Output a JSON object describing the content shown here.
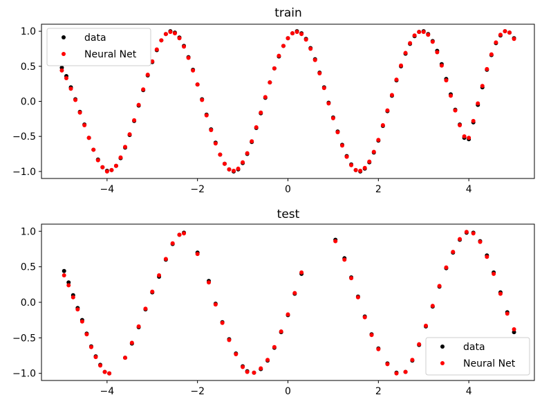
{
  "chart_data": [
    {
      "type": "scatter",
      "title": "train",
      "xlabel": "",
      "ylabel": "",
      "xlim": [
        -5.45,
        5.45
      ],
      "ylim": [
        -1.1,
        1.1
      ],
      "xticks": [
        -4,
        -2,
        0,
        2,
        4
      ],
      "yticks": [
        1.0,
        0.5,
        0.0,
        -0.5,
        -1.0
      ],
      "xtick_labels": [
        "−4",
        "−2",
        "0",
        "2",
        "4"
      ],
      "ytick_labels": [
        "1.0",
        "0.5",
        "0.0",
        "−0.5",
        "−1.0"
      ],
      "grid": false,
      "legend_position": "upper-left",
      "series": [
        {
          "name": "data",
          "color": "#000000",
          "x": [
            -5.0,
            -4.9,
            -4.8,
            -4.7,
            -4.6,
            -4.5,
            -4.4,
            -4.3,
            -4.2,
            -4.1,
            -4.0,
            -3.9,
            -3.8,
            -3.7,
            -3.6,
            -3.5,
            -3.4,
            -3.3,
            -3.2,
            -3.1,
            -3.0,
            -2.9,
            -2.8,
            -2.7,
            -2.6,
            -2.5,
            -2.4,
            -2.3,
            -2.2,
            -2.1,
            -2.0,
            -1.9,
            -1.8,
            -1.7,
            -1.6,
            -1.5,
            -1.4,
            -1.3,
            -1.2,
            -1.1,
            -1.0,
            -0.9,
            -0.8,
            -0.7,
            -0.6,
            -0.5,
            -0.4,
            -0.3,
            -0.2,
            -0.1,
            0.0,
            0.1,
            0.2,
            0.3,
            0.4,
            0.5,
            0.6,
            0.7,
            0.8,
            0.9,
            1.0,
            1.1,
            1.2,
            1.3,
            1.4,
            1.5,
            1.6,
            1.7,
            1.8,
            1.9,
            2.0,
            2.1,
            2.2,
            2.3,
            2.4,
            2.5,
            2.6,
            2.7,
            2.8,
            2.9,
            3.0,
            3.1,
            3.2,
            3.3,
            3.4,
            3.5,
            3.6,
            3.7,
            3.8,
            3.9,
            4.0,
            4.1,
            4.2,
            4.3,
            4.4,
            4.5,
            4.6,
            4.7,
            4.8,
            4.9,
            5.0
          ],
          "y": [
            0.48,
            0.36,
            0.2,
            0.03,
            -0.15,
            -0.33,
            -0.52,
            -0.69,
            -0.83,
            -0.94,
            -0.99,
            -0.98,
            -0.92,
            -0.81,
            -0.66,
            -0.48,
            -0.28,
            -0.06,
            0.16,
            0.37,
            0.56,
            0.73,
            0.87,
            0.96,
            1.0,
            0.98,
            0.91,
            0.79,
            0.63,
            0.45,
            0.24,
            0.03,
            -0.19,
            -0.4,
            -0.59,
            -0.76,
            -0.89,
            -0.97,
            -1.0,
            -0.97,
            -0.88,
            -0.75,
            -0.58,
            -0.38,
            -0.17,
            0.05,
            0.27,
            0.47,
            0.64,
            0.79,
            0.9,
            0.97,
            1.0,
            0.97,
            0.89,
            0.76,
            0.6,
            0.41,
            0.2,
            -0.02,
            -0.23,
            -0.43,
            -0.62,
            -0.78,
            -0.9,
            -0.98,
            -1.0,
            -0.96,
            -0.87,
            -0.73,
            -0.56,
            -0.35,
            -0.14,
            0.08,
            0.3,
            0.5,
            0.68,
            0.82,
            0.93,
            0.99,
            1.0,
            0.96,
            0.86,
            0.72,
            0.53,
            0.32,
            0.1,
            -0.12,
            -0.33,
            -0.52,
            -0.54,
            -0.3,
            -0.05,
            0.2,
            0.45,
            0.66,
            0.83,
            0.94,
            1.0,
            0.98,
            0.9
          ]
        },
        {
          "name": "Neural Net",
          "color": "#ff0000",
          "x": [
            -5.0,
            -4.9,
            -4.8,
            -4.7,
            -4.6,
            -4.5,
            -4.4,
            -4.3,
            -4.2,
            -4.1,
            -4.0,
            -3.9,
            -3.8,
            -3.7,
            -3.6,
            -3.5,
            -3.4,
            -3.3,
            -3.2,
            -3.1,
            -3.0,
            -2.9,
            -2.8,
            -2.7,
            -2.6,
            -2.5,
            -2.4,
            -2.3,
            -2.2,
            -2.1,
            -2.0,
            -1.9,
            -1.8,
            -1.7,
            -1.6,
            -1.5,
            -1.4,
            -1.3,
            -1.2,
            -1.1,
            -1.0,
            -0.9,
            -0.8,
            -0.7,
            -0.6,
            -0.5,
            -0.4,
            -0.3,
            -0.2,
            -0.1,
            0.0,
            0.1,
            0.2,
            0.3,
            0.4,
            0.5,
            0.6,
            0.7,
            0.8,
            0.9,
            1.0,
            1.1,
            1.2,
            1.3,
            1.4,
            1.5,
            1.6,
            1.7,
            1.8,
            1.9,
            2.0,
            2.1,
            2.2,
            2.3,
            2.4,
            2.5,
            2.6,
            2.7,
            2.8,
            2.9,
            3.0,
            3.1,
            3.2,
            3.3,
            3.4,
            3.5,
            3.6,
            3.7,
            3.8,
            3.9,
            4.0,
            4.1,
            4.2,
            4.3,
            4.4,
            4.5,
            4.6,
            4.7,
            4.8,
            4.9,
            5.0
          ],
          "y": [
            0.44,
            0.33,
            0.18,
            0.02,
            -0.16,
            -0.34,
            -0.52,
            -0.69,
            -0.84,
            -0.94,
            -1.0,
            -0.98,
            -0.92,
            -0.8,
            -0.65,
            -0.47,
            -0.27,
            -0.05,
            0.17,
            0.38,
            0.57,
            0.74,
            0.87,
            0.96,
            0.99,
            0.97,
            0.9,
            0.78,
            0.62,
            0.44,
            0.24,
            0.02,
            -0.2,
            -0.41,
            -0.6,
            -0.76,
            -0.89,
            -0.97,
            -0.99,
            -0.96,
            -0.87,
            -0.74,
            -0.57,
            -0.37,
            -0.16,
            0.06,
            0.27,
            0.47,
            0.65,
            0.79,
            0.9,
            0.97,
            0.99,
            0.96,
            0.88,
            0.75,
            0.59,
            0.4,
            0.19,
            -0.03,
            -0.24,
            -0.44,
            -0.63,
            -0.79,
            -0.91,
            -0.98,
            -0.99,
            -0.95,
            -0.86,
            -0.72,
            -0.55,
            -0.34,
            -0.13,
            0.09,
            0.31,
            0.51,
            0.69,
            0.83,
            0.94,
            0.99,
            0.99,
            0.95,
            0.85,
            0.7,
            0.51,
            0.3,
            0.08,
            -0.13,
            -0.34,
            -0.5,
            -0.52,
            -0.28,
            -0.03,
            0.22,
            0.46,
            0.67,
            0.84,
            0.95,
            1.0,
            0.98,
            0.89
          ]
        }
      ]
    },
    {
      "type": "scatter",
      "title": "test",
      "xlabel": "",
      "ylabel": "",
      "xlim": [
        -5.45,
        5.45
      ],
      "ylim": [
        -1.1,
        1.1
      ],
      "xticks": [
        -4,
        -2,
        0,
        2,
        4
      ],
      "yticks": [
        1.0,
        0.5,
        0.0,
        -0.5,
        -1.0
      ],
      "xtick_labels": [
        "−4",
        "−2",
        "0",
        "2",
        "4"
      ],
      "ytick_labels": [
        "1.0",
        "0.5",
        "0.0",
        "−0.5",
        "−1.0"
      ],
      "grid": false,
      "legend_position": "lower-right",
      "series": [
        {
          "name": "data",
          "color": "#000000",
          "x": [
            -4.95,
            -4.85,
            -4.75,
            -4.65,
            -4.55,
            -4.45,
            -4.35,
            -4.25,
            -4.15,
            -4.05,
            -3.95,
            -3.6,
            -3.45,
            -3.3,
            -3.15,
            -3.0,
            -2.85,
            -2.7,
            -2.55,
            -2.4,
            -2.3,
            -2.0,
            -1.75,
            -1.6,
            -1.45,
            -1.3,
            -1.15,
            -1.0,
            -0.9,
            -0.75,
            -0.6,
            -0.45,
            -0.3,
            -0.15,
            0.0,
            0.15,
            0.3,
            1.05,
            1.25,
            1.4,
            1.55,
            1.7,
            1.85,
            2.0,
            2.2,
            2.4,
            2.6,
            2.75,
            2.9,
            3.05,
            3.2,
            3.35,
            3.5,
            3.65,
            3.8,
            3.95,
            4.1,
            4.25,
            4.4,
            4.55,
            4.7,
            4.85,
            5.0
          ],
          "y": [
            0.44,
            0.28,
            0.1,
            -0.08,
            -0.25,
            -0.44,
            -0.62,
            -0.76,
            -0.88,
            -0.98,
            -1.0,
            -0.78,
            -0.58,
            -0.35,
            -0.1,
            0.14,
            0.36,
            0.6,
            0.82,
            0.95,
            0.98,
            0.7,
            0.3,
            -0.02,
            -0.28,
            -0.52,
            -0.72,
            -0.9,
            -0.97,
            -0.99,
            -0.94,
            -0.82,
            -0.64,
            -0.42,
            -0.18,
            0.12,
            0.4,
            0.88,
            0.62,
            0.35,
            0.08,
            -0.2,
            -0.45,
            -0.65,
            -0.86,
            -0.99,
            -0.98,
            -0.82,
            -0.6,
            -0.34,
            -0.06,
            0.22,
            0.48,
            0.7,
            0.88,
            0.98,
            0.98,
            0.86,
            0.66,
            0.42,
            0.14,
            -0.14,
            -0.42
          ]
        },
        {
          "name": "Neural Net",
          "color": "#ff0000",
          "x": [
            -4.95,
            -4.85,
            -4.75,
            -4.65,
            -4.55,
            -4.45,
            -4.35,
            -4.25,
            -4.15,
            -4.05,
            -3.95,
            -3.6,
            -3.45,
            -3.3,
            -3.15,
            -3.0,
            -2.85,
            -2.7,
            -2.55,
            -2.4,
            -2.3,
            -2.0,
            -1.75,
            -1.6,
            -1.45,
            -1.3,
            -1.15,
            -1.0,
            -0.9,
            -0.75,
            -0.6,
            -0.45,
            -0.3,
            -0.15,
            0.0,
            0.15,
            0.3,
            1.05,
            1.25,
            1.4,
            1.55,
            1.7,
            1.85,
            2.0,
            2.2,
            2.4,
            2.6,
            2.75,
            2.9,
            3.05,
            3.2,
            3.35,
            3.5,
            3.65,
            3.8,
            3.95,
            4.1,
            4.25,
            4.4,
            4.55,
            4.7,
            4.85,
            5.0
          ],
          "y": [
            0.38,
            0.24,
            0.07,
            -0.1,
            -0.27,
            -0.45,
            -0.63,
            -0.77,
            -0.89,
            -0.98,
            -1.0,
            -0.78,
            -0.57,
            -0.34,
            -0.09,
            0.15,
            0.38,
            0.61,
            0.83,
            0.95,
            0.97,
            0.68,
            0.28,
            -0.03,
            -0.29,
            -0.53,
            -0.73,
            -0.91,
            -0.98,
            -0.99,
            -0.93,
            -0.81,
            -0.63,
            -0.41,
            -0.17,
            0.13,
            0.42,
            0.86,
            0.6,
            0.34,
            0.07,
            -0.21,
            -0.46,
            -0.66,
            -0.87,
            -1.0,
            -0.98,
            -0.81,
            -0.59,
            -0.33,
            -0.05,
            0.23,
            0.49,
            0.71,
            0.89,
            0.99,
            0.97,
            0.85,
            0.64,
            0.4,
            0.12,
            -0.16,
            -0.38
          ]
        }
      ]
    }
  ]
}
